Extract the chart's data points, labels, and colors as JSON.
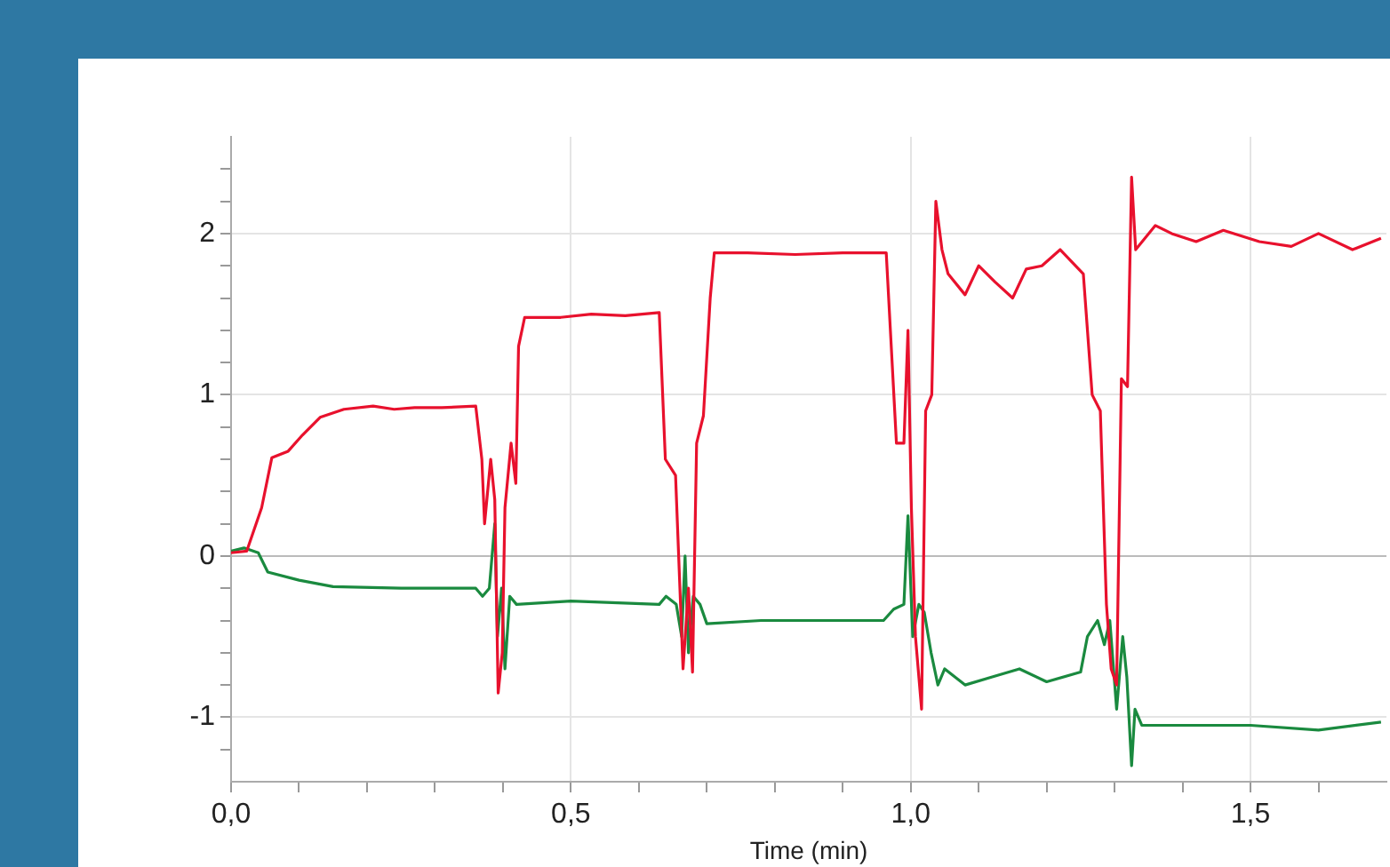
{
  "chart_data": {
    "type": "line",
    "xlabel": "Time (min)",
    "xlim": [
      0,
      1.7
    ],
    "ylim": [
      -1.4,
      2.6
    ],
    "xticks": [
      {
        "value": 0,
        "label": "0,0"
      },
      {
        "value": 0.1,
        "label": null
      },
      {
        "value": 0.2,
        "label": null
      },
      {
        "value": 0.3,
        "label": null
      },
      {
        "value": 0.4,
        "label": null
      },
      {
        "value": 0.5,
        "label": "0,5"
      },
      {
        "value": 0.6,
        "label": null
      },
      {
        "value": 0.7,
        "label": null
      },
      {
        "value": 0.8,
        "label": null
      },
      {
        "value": 0.9,
        "label": null
      },
      {
        "value": 1,
        "label": "1,0"
      },
      {
        "value": 1.1,
        "label": null
      },
      {
        "value": 1.2,
        "label": null
      },
      {
        "value": 1.3,
        "label": null
      },
      {
        "value": 1.4,
        "label": null
      },
      {
        "value": 1.5,
        "label": "1,5"
      },
      {
        "value": 1.6,
        "label": null
      }
    ],
    "yticks": [
      {
        "value": -1.2,
        "label": null
      },
      -1,
      {
        "value": -0.8,
        "label": null
      },
      {
        "value": -0.6,
        "label": null
      },
      {
        "value": -0.4,
        "label": null
      },
      {
        "value": -0.2,
        "label": null
      },
      0,
      {
        "value": 0.2,
        "label": null
      },
      {
        "value": 0.4,
        "label": null
      },
      {
        "value": 0.6,
        "label": null
      },
      {
        "value": 0.8,
        "label": null
      },
      1,
      {
        "value": 1.2,
        "label": null
      },
      {
        "value": 1.4,
        "label": null
      },
      {
        "value": 1.6,
        "label": null
      },
      {
        "value": 1.8,
        "label": null
      },
      2,
      {
        "value": 2.2,
        "label": null
      },
      {
        "value": 2.4,
        "label": null
      }
    ],
    "grid": true,
    "legend": false,
    "marker": "none",
    "line_style": "solid",
    "series": [
      {
        "color": "#e8112d",
        "x": [
          0,
          0.023,
          0.045,
          0.06,
          0.084,
          0.105,
          0.131,
          0.166,
          0.209,
          0.24,
          0.27,
          0.31,
          0.36,
          0.369,
          0.373,
          0.382,
          0.388,
          0.393,
          0.399,
          0.403,
          0.412,
          0.419,
          0.423,
          0.432,
          0.485,
          0.53,
          0.58,
          0.63,
          0.639,
          0.654,
          0.665,
          0.673,
          0.679,
          0.685,
          0.695,
          0.705,
          0.711,
          0.76,
          0.83,
          0.9,
          0.964,
          0.979,
          0.99,
          0.996,
          1.001,
          1.007,
          1.016,
          1.022,
          1.031,
          1.037,
          1.046,
          1.055,
          1.08,
          1.1,
          1.124,
          1.15,
          1.17,
          1.193,
          1.22,
          1.254,
          1.267,
          1.279,
          1.288,
          1.295,
          1.303,
          1.31,
          1.319,
          1.325,
          1.331,
          1.36,
          1.384,
          1.42,
          1.46,
          1.513,
          1.56,
          1.6,
          1.65,
          1.692
        ],
        "values": [
          0.02,
          0.03,
          0.3,
          0.61,
          0.65,
          0.75,
          0.86,
          0.91,
          0.93,
          0.91,
          0.92,
          0.92,
          0.93,
          0.6,
          0.2,
          0.6,
          0.35,
          -0.85,
          -0.6,
          0.3,
          0.7,
          0.45,
          1.3,
          1.48,
          1.48,
          1.5,
          1.49,
          1.51,
          0.6,
          0.5,
          -0.7,
          -0.2,
          -0.72,
          0.7,
          0.87,
          1.6,
          1.88,
          1.88,
          1.87,
          1.88,
          1.88,
          0.7,
          0.7,
          1.4,
          0.3,
          -0.5,
          -0.95,
          0.9,
          1.0,
          2.2,
          1.9,
          1.75,
          1.62,
          1.8,
          1.7,
          1.6,
          1.78,
          1.8,
          1.9,
          1.75,
          1.0,
          0.9,
          -0.3,
          -0.7,
          -0.8,
          1.1,
          1.05,
          2.35,
          1.9,
          2.05,
          2.0,
          1.95,
          2.02,
          1.95,
          1.92,
          2.0,
          1.9,
          1.97
        ]
      },
      {
        "color": "#1a8a3f",
        "x": [
          0,
          0.019,
          0.04,
          0.054,
          0.1,
          0.15,
          0.25,
          0.36,
          0.37,
          0.38,
          0.388,
          0.392,
          0.398,
          0.403,
          0.41,
          0.42,
          0.5,
          0.63,
          0.64,
          0.655,
          0.663,
          0.668,
          0.673,
          0.68,
          0.69,
          0.7,
          0.78,
          0.96,
          0.975,
          0.99,
          0.996,
          1.003,
          1.012,
          1.02,
          1.03,
          1.04,
          1.05,
          1.08,
          1.12,
          1.16,
          1.2,
          1.25,
          1.26,
          1.275,
          1.285,
          1.293,
          1.303,
          1.312,
          1.318,
          1.325,
          1.33,
          1.34,
          1.4,
          1.5,
          1.6,
          1.692
        ],
        "values": [
          0.03,
          0.05,
          0.02,
          -0.1,
          -0.15,
          -0.19,
          -0.2,
          -0.2,
          -0.25,
          -0.2,
          0.2,
          -0.5,
          -0.2,
          -0.7,
          -0.25,
          -0.3,
          -0.28,
          -0.3,
          -0.25,
          -0.3,
          -0.5,
          0.0,
          -0.6,
          -0.25,
          -0.3,
          -0.42,
          -0.4,
          -0.4,
          -0.33,
          -0.3,
          0.25,
          -0.5,
          -0.3,
          -0.35,
          -0.6,
          -0.8,
          -0.7,
          -0.8,
          -0.75,
          -0.7,
          -0.78,
          -0.72,
          -0.5,
          -0.4,
          -0.55,
          -0.4,
          -0.95,
          -0.5,
          -0.75,
          -1.3,
          -0.95,
          -1.05,
          -1.05,
          -1.05,
          -1.08,
          -1.03
        ]
      }
    ]
  }
}
